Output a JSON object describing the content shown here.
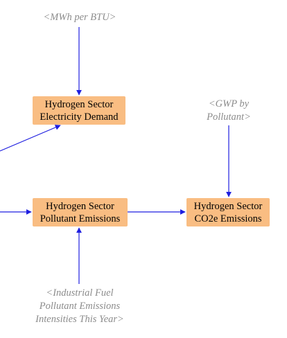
{
  "diagram": {
    "edge_color": "#1f1fe0",
    "node_fill": "#f9bd82",
    "shadow_text_color": "#8c8c8c",
    "nodes": {
      "electricity_demand": {
        "line1": "Hydrogen Sector",
        "line2": "Electricity Demand"
      },
      "pollutant_emissions": {
        "line1": "Hydrogen Sector",
        "line2": "Pollutant Emissions"
      },
      "co2e_emissions": {
        "line1": "Hydrogen Sector",
        "line2": "CO2e Emissions"
      }
    },
    "shadow_variables": {
      "mwh_per_btu": {
        "line1": "<MWh per BTU>"
      },
      "gwp_by_pollutant": {
        "line1": "<GWP by",
        "line2": "Pollutant>"
      },
      "industrial_fuel": {
        "line1": "<Industrial Fuel",
        "line2": "Pollutant Emissions",
        "line3": "Intensities This Year>"
      }
    }
  }
}
